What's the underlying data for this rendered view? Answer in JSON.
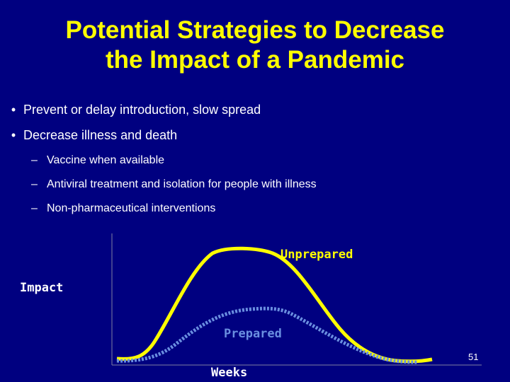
{
  "header": {
    "title_lines": [
      "Potential Strategies to Decrease",
      "the Impact of a Pandemic"
    ]
  },
  "bullets": [
    {
      "text": "Prevent or delay introduction, slow spread",
      "sub": []
    },
    {
      "text": "Decrease illness and death",
      "sub": [
        "Vaccine when available",
        "Antiviral treatment and isolation for people with illness",
        "Non-pharmaceutical interventions"
      ]
    }
  ],
  "diagram": {
    "y_label": "Impact",
    "x_label": "Weeks",
    "curves": [
      "Unprepared",
      "Prepared"
    ]
  },
  "footer": {
    "page_number": "51"
  }
}
